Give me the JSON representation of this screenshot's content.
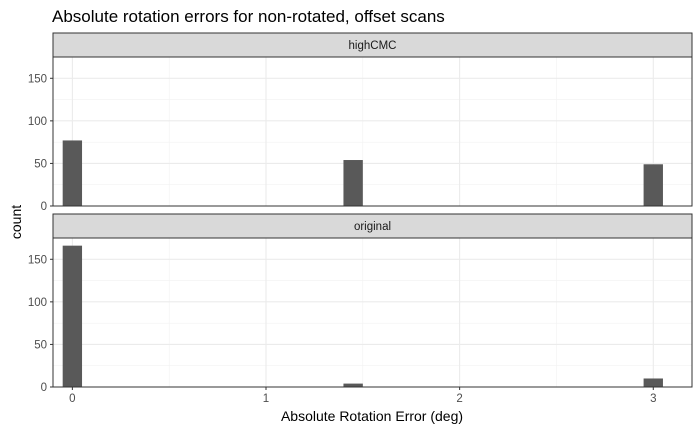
{
  "chart_data": {
    "type": "bar",
    "title": "Absolute rotation errors for non-rotated, offset scans",
    "xlabel": "Absolute Rotation Error (deg)",
    "ylabel": "count",
    "xlim": [
      -0.1,
      3.2
    ],
    "ylim": [
      0,
      175
    ],
    "x_ticks": [
      0,
      1,
      2,
      3
    ],
    "x_tick_labels": [
      "0",
      "1",
      "2",
      "3"
    ],
    "y_ticks": [
      0,
      50,
      100,
      150
    ],
    "y_tick_labels": [
      "0",
      "50",
      "100",
      "150"
    ],
    "grid": true,
    "legend": "none",
    "bar_width": 0.1,
    "bar_color": "#595959",
    "panels": [
      {
        "label": "highCMC",
        "bars": [
          {
            "x": 0,
            "count": 77
          },
          {
            "x": 1.45,
            "count": 54
          },
          {
            "x": 3,
            "count": 49
          }
        ]
      },
      {
        "label": "original",
        "bars": [
          {
            "x": 0,
            "count": 166
          },
          {
            "x": 1.45,
            "count": 4
          },
          {
            "x": 3,
            "count": 10
          }
        ]
      }
    ]
  }
}
